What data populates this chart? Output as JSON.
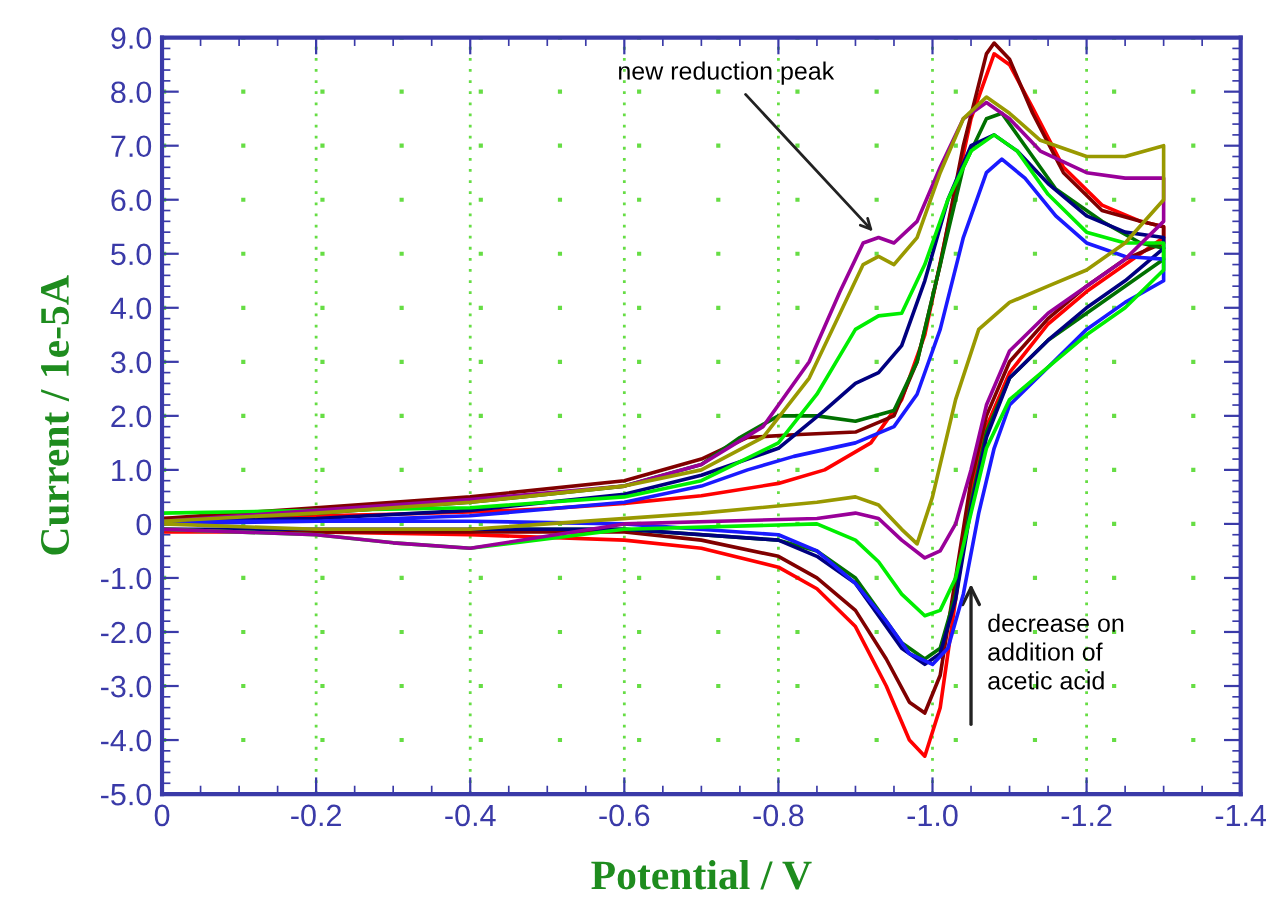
{
  "chart_data": {
    "type": "line",
    "xlabel": "Potential / V",
    "ylabel": "Current / 1e-5A",
    "xlim": [
      0,
      -1.4
    ],
    "ylim": [
      -5,
      9
    ],
    "xticks": [
      0,
      -0.2,
      -0.4,
      -0.6,
      -0.8,
      {
        "value": -1.0,
        "label": "-1.0"
      },
      -1.2,
      -1.4
    ],
    "yticks": [
      {
        "value": 9,
        "label": "9.0"
      },
      {
        "value": 8,
        "label": "8.0"
      },
      {
        "value": 7,
        "label": "7.0"
      },
      {
        "value": 6,
        "label": "6.0"
      },
      {
        "value": 5,
        "label": "5.0"
      },
      {
        "value": 4,
        "label": "4.0"
      },
      {
        "value": 3,
        "label": "3.0"
      },
      {
        "value": 2,
        "label": "2.0"
      },
      {
        "value": 1,
        "label": "1.0"
      },
      0,
      {
        "value": -1,
        "label": "-1.0"
      },
      {
        "value": -2,
        "label": "-2.0"
      },
      {
        "value": -3,
        "label": "-3.0"
      },
      {
        "value": -4,
        "label": "-4.0"
      },
      {
        "value": -5,
        "label": "-5.0"
      }
    ],
    "grid": true,
    "marker": "none",
    "line_style": "solid",
    "annotations": [
      {
        "text": "new reduction peak",
        "x": -0.93,
        "y": 5.3
      },
      "decrease on\naddition of\nacetic acid"
    ],
    "series": [
      {
        "color": "#ff0000",
        "x": [
          0,
          -0.1,
          -0.2,
          -0.3,
          -0.4,
          -0.5,
          -0.6,
          -0.7,
          -0.8,
          -0.86,
          -0.92,
          -0.96,
          -0.99,
          -1.02,
          -1.05,
          -1.08,
          -1.1,
          -1.13,
          -1.17,
          -1.22,
          -1.27,
          -1.3,
          -1.3,
          -1.25,
          -1.2,
          -1.15,
          -1.1,
          -1.07,
          -1.05,
          -1.03,
          -1.01,
          -0.99,
          -0.97,
          -0.94,
          -0.9,
          -0.85,
          -0.8,
          -0.7,
          -0.6,
          -0.4,
          -0.2,
          0
        ],
        "values": [
          0.1,
          0.12,
          0.15,
          0.18,
          0.22,
          0.28,
          0.38,
          0.52,
          0.75,
          1.0,
          1.5,
          2.3,
          3.5,
          5.5,
          7.5,
          8.7,
          8.5,
          7.7,
          6.6,
          5.9,
          5.6,
          5.5,
          5.3,
          4.8,
          4.3,
          3.7,
          2.8,
          1.8,
          0.6,
          -1.4,
          -3.4,
          -4.3,
          -4.0,
          -3.0,
          -1.9,
          -1.2,
          -0.8,
          -0.45,
          -0.3,
          -0.2,
          -0.15,
          -0.15
        ]
      },
      {
        "color": "#800000",
        "x": [
          0,
          -0.2,
          -0.4,
          -0.6,
          -0.7,
          -0.76,
          -0.82,
          -0.9,
          -0.95,
          -0.98,
          -1.01,
          -1.04,
          -1.07,
          -1.08,
          -1.1,
          -1.13,
          -1.17,
          -1.22,
          -1.27,
          -1.3,
          -1.3,
          -1.25,
          -1.2,
          -1.15,
          -1.1,
          -1.07,
          -1.05,
          -1.03,
          -1.01,
          -0.99,
          -0.97,
          -0.94,
          -0.9,
          -0.85,
          -0.8,
          -0.7,
          -0.6,
          -0.4,
          -0.2,
          0
        ],
        "values": [
          0.1,
          0.3,
          0.5,
          0.8,
          1.2,
          1.6,
          1.65,
          1.7,
          2.0,
          3.0,
          4.8,
          7.0,
          8.7,
          8.9,
          8.6,
          7.6,
          6.5,
          5.8,
          5.6,
          5.5,
          5.2,
          4.9,
          4.4,
          3.8,
          3.0,
          2.0,
          0.8,
          -1.0,
          -2.8,
          -3.5,
          -3.3,
          -2.5,
          -1.6,
          -1.0,
          -0.6,
          -0.3,
          -0.15,
          -0.15,
          -0.15,
          -0.1
        ]
      },
      {
        "color": "#007000",
        "x": [
          0,
          -0.2,
          -0.4,
          -0.6,
          -0.7,
          -0.75,
          -0.8,
          -0.85,
          -0.9,
          -0.95,
          -0.98,
          -1.01,
          -1.04,
          -1.07,
          -1.09,
          -1.12,
          -1.16,
          -1.22,
          -1.27,
          -1.3,
          -1.3,
          -1.25,
          -1.2,
          -1.15,
          -1.1,
          -1.07,
          -1.05,
          -1.03,
          -1.01,
          -0.99,
          -0.96,
          -0.93,
          -0.9,
          -0.85,
          -0.8,
          -0.6,
          -0.4
        ],
        "values": [
          0.05,
          0.2,
          0.4,
          0.7,
          1.1,
          1.6,
          2.0,
          2.0,
          1.9,
          2.1,
          3.0,
          4.8,
          6.6,
          7.5,
          7.6,
          7.0,
          6.2,
          5.6,
          5.2,
          5.1,
          4.9,
          4.4,
          3.9,
          3.4,
          2.7,
          1.7,
          0.4,
          -1.3,
          -2.3,
          -2.5,
          -2.2,
          -1.6,
          -1.0,
          -0.5,
          -0.3,
          -0.1,
          -0.1
        ]
      },
      {
        "color": "#000080",
        "x": [
          0,
          -0.2,
          -0.4,
          -0.6,
          -0.7,
          -0.8,
          -0.86,
          -0.9,
          -0.93,
          -0.96,
          -0.99,
          -1.02,
          -1.05,
          -1.08,
          -1.11,
          -1.15,
          -1.2,
          -1.25,
          -1.3,
          -1.3,
          -1.25,
          -1.2,
          -1.15,
          -1.1,
          -1.07,
          -1.05,
          -1.03,
          -1.01,
          -0.99,
          -0.96,
          -0.93,
          -0.9,
          -0.85,
          -0.8,
          -0.6,
          -0.4,
          -0.2,
          0
        ],
        "values": [
          0.05,
          0.1,
          0.25,
          0.55,
          0.9,
          1.4,
          2.1,
          2.6,
          2.8,
          3.3,
          4.5,
          6.0,
          7.0,
          7.2,
          6.9,
          6.3,
          5.7,
          5.4,
          5.3,
          5.1,
          4.5,
          4.0,
          3.4,
          2.7,
          1.6,
          0.3,
          -1.4,
          -2.4,
          -2.6,
          -2.3,
          -1.7,
          -1.1,
          -0.6,
          -0.3,
          -0.1,
          -0.1,
          -0.1,
          -0.1
        ]
      },
      {
        "color": "#1a1aff",
        "x": [
          0,
          -0.2,
          -0.4,
          -0.6,
          -0.7,
          -0.76,
          -0.82,
          -0.9,
          -0.95,
          -0.98,
          -1.01,
          -1.04,
          -1.07,
          -1.09,
          -1.12,
          -1.16,
          -1.2,
          -1.25,
          -1.3,
          -1.3,
          -1.25,
          -1.2,
          -1.15,
          -1.1,
          -1.08,
          -1.06,
          -1.04,
          -1.02,
          -1.0,
          -0.97,
          -0.94,
          -0.9,
          -0.85,
          -0.8,
          -0.6,
          -0.4,
          -0.2,
          0
        ],
        "values": [
          0.0,
          0.05,
          0.15,
          0.4,
          0.7,
          1.0,
          1.25,
          1.5,
          1.8,
          2.4,
          3.6,
          5.3,
          6.5,
          6.75,
          6.4,
          5.7,
          5.2,
          4.95,
          4.9,
          4.5,
          4.1,
          3.6,
          2.9,
          2.2,
          1.4,
          0.2,
          -1.3,
          -2.3,
          -2.6,
          -2.4,
          -1.8,
          -1.1,
          -0.5,
          -0.2,
          0.0,
          0.05,
          0.05,
          0.05
        ]
      },
      {
        "color": "#00ee00",
        "x": [
          0,
          -0.2,
          -0.4,
          -0.6,
          -0.7,
          -0.8,
          -0.85,
          -0.9,
          -0.93,
          -0.96,
          -0.99,
          -1.02,
          -1.05,
          -1.08,
          -1.11,
          -1.15,
          -1.2,
          -1.25,
          -1.3,
          -1.3,
          -1.25,
          -1.2,
          -1.15,
          -1.1,
          -1.07,
          -1.05,
          -1.03,
          -1.01,
          -0.99,
          -0.96,
          -0.93,
          -0.9,
          -0.85,
          -0.6,
          -0.4,
          -0.3,
          -0.2,
          0
        ],
        "values": [
          0.2,
          0.25,
          0.3,
          0.5,
          0.8,
          1.5,
          2.4,
          3.6,
          3.85,
          3.9,
          4.8,
          6.0,
          6.9,
          7.2,
          6.9,
          6.1,
          5.4,
          5.2,
          5.2,
          4.7,
          4.0,
          3.5,
          2.9,
          2.3,
          1.4,
          0.2,
          -1.0,
          -1.6,
          -1.7,
          -1.3,
          -0.7,
          -0.3,
          0.0,
          -0.1,
          -0.45,
          -0.35,
          -0.2,
          -0.1
        ]
      },
      {
        "color": "#990099",
        "x": [
          0,
          -0.2,
          -0.4,
          -0.6,
          -0.7,
          -0.78,
          -0.84,
          -0.88,
          -0.91,
          -0.93,
          -0.95,
          -0.98,
          -1.01,
          -1.04,
          -1.07,
          -1.1,
          -1.14,
          -1.2,
          -1.25,
          -1.3,
          -1.3,
          -1.25,
          -1.2,
          -1.15,
          -1.1,
          -1.07,
          -1.05,
          -1.03,
          -1.01,
          -0.99,
          -0.96,
          -0.93,
          -0.9,
          -0.85,
          -0.6,
          -0.4,
          -0.3,
          -0.2,
          0
        ],
        "values": [
          0.05,
          0.25,
          0.45,
          0.7,
          1.1,
          1.8,
          3.0,
          4.3,
          5.2,
          5.3,
          5.2,
          5.6,
          6.6,
          7.5,
          7.8,
          7.5,
          6.9,
          6.5,
          6.4,
          6.4,
          5.6,
          4.9,
          4.4,
          3.9,
          3.2,
          2.2,
          1.0,
          0.0,
          -0.5,
          -0.63,
          -0.3,
          0.1,
          0.2,
          0.1,
          0.0,
          -0.45,
          -0.35,
          -0.2,
          -0.1
        ]
      },
      {
        "color": "#999900",
        "x": [
          0,
          -0.2,
          -0.4,
          -0.6,
          -0.7,
          -0.78,
          -0.84,
          -0.88,
          -0.91,
          -0.93,
          -0.95,
          -0.98,
          -1.01,
          -1.04,
          -1.07,
          -1.1,
          -1.14,
          -1.2,
          -1.25,
          -1.3,
          -1.3,
          -1.25,
          -1.2,
          -1.15,
          -1.1,
          -1.06,
          -1.03,
          -1.0,
          -0.98,
          -0.96,
          -0.93,
          -0.9,
          -0.85,
          -0.7,
          -0.4,
          -0.2,
          0
        ],
        "values": [
          0.05,
          0.2,
          0.4,
          0.7,
          1.0,
          1.6,
          2.7,
          3.9,
          4.8,
          4.95,
          4.8,
          5.3,
          6.5,
          7.5,
          7.9,
          7.6,
          7.1,
          6.8,
          6.8,
          7.0,
          6.0,
          5.2,
          4.7,
          4.4,
          4.1,
          3.6,
          2.3,
          0.5,
          -0.37,
          -0.1,
          0.35,
          0.5,
          0.4,
          0.2,
          -0.1,
          -0.1,
          0.0
        ]
      }
    ]
  }
}
